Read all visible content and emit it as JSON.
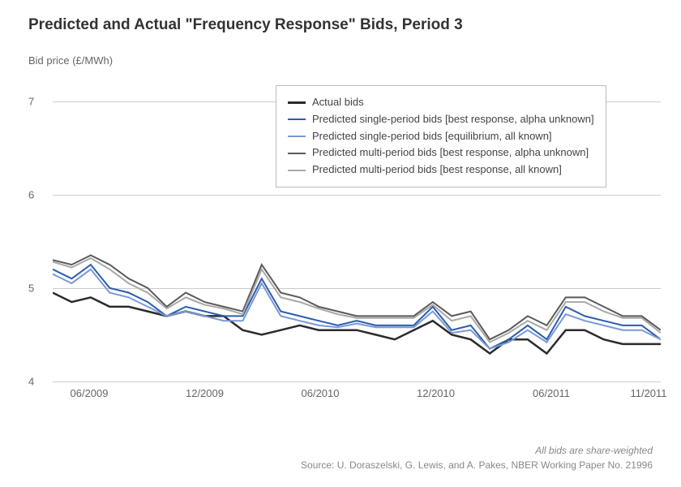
{
  "chart": {
    "type": "line",
    "title": "Predicted and Actual \"Frequency Response\" Bids, Period 3",
    "y_axis_label": "Bid price (£/MWh)",
    "background_color": "#ffffff",
    "grid_color": "#cccccc",
    "text_color": "#666666",
    "title_color": "#333333",
    "title_fontsize": 19,
    "label_fontsize": 13,
    "ylim": [
      4,
      7.3
    ],
    "y_ticks": [
      4,
      5,
      6,
      7
    ],
    "x_labels": [
      "06/2009",
      "12/2009",
      "06/2010",
      "12/2010",
      "06/2011",
      "11/2011"
    ],
    "x_positions_pct": [
      6,
      25,
      44,
      63,
      82,
      98
    ],
    "series": [
      {
        "name": "Actual bids",
        "color": "#2b2b2b",
        "width": 2.5,
        "data": [
          4.95,
          4.85,
          4.9,
          4.8,
          4.8,
          4.75,
          4.7,
          4.75,
          4.7,
          4.7,
          4.55,
          4.5,
          4.55,
          4.6,
          4.55,
          4.55,
          4.55,
          4.5,
          4.45,
          4.55,
          4.65,
          4.5,
          4.45,
          4.3,
          4.45,
          4.45,
          4.3,
          4.55,
          4.55,
          4.45,
          4.4,
          4.4,
          4.4
        ]
      },
      {
        "name": "Predicted single-period bids [best response, alpha unknown]",
        "color": "#2a5db0",
        "width": 2,
        "data": [
          5.2,
          5.1,
          5.25,
          5.0,
          4.95,
          4.85,
          4.7,
          4.8,
          4.75,
          4.7,
          4.7,
          5.1,
          4.75,
          4.7,
          4.65,
          4.6,
          4.65,
          4.6,
          4.6,
          4.6,
          4.8,
          4.55,
          4.6,
          4.35,
          4.45,
          4.6,
          4.45,
          4.8,
          4.7,
          4.65,
          4.6,
          4.6,
          4.45
        ]
      },
      {
        "name": "Predicted single-period bids [equilibrium, all known]",
        "color": "#7a99d4",
        "width": 2,
        "data": [
          5.15,
          5.05,
          5.2,
          4.95,
          4.9,
          4.8,
          4.7,
          4.75,
          4.7,
          4.65,
          4.65,
          5.05,
          4.7,
          4.65,
          4.6,
          4.58,
          4.62,
          4.58,
          4.58,
          4.58,
          4.75,
          4.52,
          4.55,
          4.35,
          4.42,
          4.55,
          4.42,
          4.72,
          4.65,
          4.6,
          4.55,
          4.55,
          4.45
        ]
      },
      {
        "name": "Predicted multi-period bids [best response, alpha unknown]",
        "color": "#5a5a5a",
        "width": 2,
        "data": [
          5.3,
          5.25,
          5.35,
          5.25,
          5.1,
          5.0,
          4.8,
          4.95,
          4.85,
          4.8,
          4.75,
          5.25,
          4.95,
          4.9,
          4.8,
          4.75,
          4.7,
          4.7,
          4.7,
          4.7,
          4.85,
          4.7,
          4.75,
          4.45,
          4.55,
          4.7,
          4.6,
          4.9,
          4.9,
          4.8,
          4.7,
          4.7,
          4.55
        ]
      },
      {
        "name": "Predicted multi-period bids [best response, all known]",
        "color": "#a8a8a8",
        "width": 2,
        "data": [
          5.28,
          5.22,
          5.32,
          5.2,
          5.05,
          4.95,
          4.78,
          4.9,
          4.82,
          4.78,
          4.72,
          5.2,
          4.9,
          4.85,
          4.78,
          4.72,
          4.68,
          4.68,
          4.68,
          4.68,
          4.82,
          4.65,
          4.7,
          4.42,
          4.52,
          4.65,
          4.55,
          4.85,
          4.85,
          4.75,
          4.68,
          4.68,
          4.52
        ]
      }
    ],
    "footer_note": "All bids are share-weighted",
    "footer_source": "Source: U. Doraszelski, G. Lewis, and A. Pakes, NBER Working Paper No. 21996"
  }
}
